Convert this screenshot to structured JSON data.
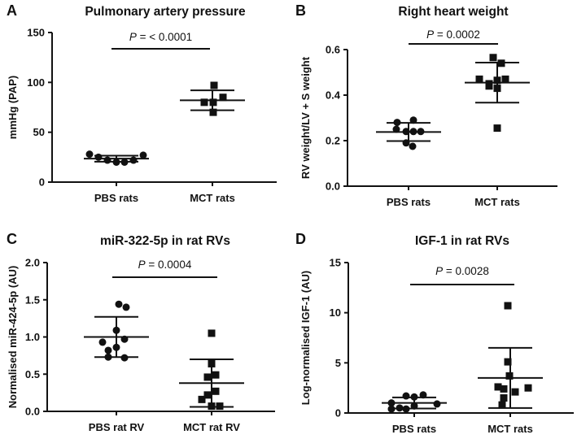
{
  "chart_data": [
    {
      "type": "scatter",
      "panel": "A",
      "title": "Pulmonary artery pressure",
      "ylabel": "mmHg (PAP)",
      "xlabel": "",
      "ylim": [
        0,
        150
      ],
      "yticks": [
        "0",
        "50",
        "100",
        "150"
      ],
      "ytick_values": [
        0,
        50,
        100,
        150
      ],
      "categories": [
        "PBS rats",
        "MCT rats"
      ],
      "p_label": "P = < 0.0001",
      "series": [
        {
          "name": "PBS rats",
          "marker": "circle",
          "values": [
            28,
            25,
            22,
            20,
            20,
            22,
            27
          ],
          "mean": 23.5,
          "sd": 3
        },
        {
          "name": "MCT rats",
          "marker": "square",
          "values": [
            97,
            85,
            80,
            80,
            70
          ],
          "mean": 82,
          "sd": 10
        }
      ]
    },
    {
      "type": "scatter",
      "panel": "B",
      "title": "Right heart weight",
      "ylabel": "RV weight/LV + S weight",
      "xlabel": "",
      "ylim": [
        0,
        0.6
      ],
      "yticks": [
        "0.0",
        "0.2",
        "0.4",
        "0.6"
      ],
      "ytick_values": [
        0,
        0.2,
        0.4,
        0.6
      ],
      "categories": [
        "PBS rats",
        "MCT rats"
      ],
      "p_label": "P = 0.0002",
      "series": [
        {
          "name": "PBS rats",
          "marker": "circle",
          "values": [
            0.29,
            0.28,
            0.25,
            0.24,
            0.24,
            0.24,
            0.19,
            0.175
          ],
          "mean": 0.238,
          "sd": 0.04
        },
        {
          "name": "MCT rats",
          "marker": "square",
          "values": [
            0.565,
            0.54,
            0.47,
            0.465,
            0.47,
            0.44,
            0.43,
            0.45,
            0.255
          ],
          "mean": 0.455,
          "sd": 0.088
        }
      ]
    },
    {
      "type": "scatter",
      "panel": "C",
      "title": "miR-322-5p in rat RVs",
      "ylabel": "Normalised miR-424-5p (AU)",
      "xlabel": "",
      "ylim": [
        0,
        2.0
      ],
      "yticks": [
        "0.0",
        "0.5",
        "1.0",
        "1.5",
        "2.0"
      ],
      "ytick_values": [
        0,
        0.5,
        1.0,
        1.5,
        2.0
      ],
      "categories": [
        "PBS rat RV",
        "MCT rat RV"
      ],
      "p_label": "P = 0.0004",
      "series": [
        {
          "name": "PBS rat RV",
          "marker": "circle",
          "values": [
            1.44,
            1.4,
            1.09,
            0.97,
            0.93,
            0.86,
            0.82,
            0.73,
            0.72
          ],
          "mean": 1.0,
          "sd": 0.27
        },
        {
          "name": "MCT rat RV",
          "marker": "square",
          "values": [
            1.05,
            0.64,
            0.49,
            0.46,
            0.27,
            0.22,
            0.16,
            0.07,
            0.07
          ],
          "mean": 0.38,
          "sd": 0.32
        }
      ]
    },
    {
      "type": "scatter",
      "panel": "D",
      "title": "IGF-1 in rat RVs",
      "ylabel": "Log-normalised IGF-1 (AU)",
      "xlabel": "",
      "ylim": [
        0,
        15
      ],
      "yticks": [
        "0",
        "5",
        "10",
        "15"
      ],
      "ytick_values": [
        0,
        5,
        10,
        15
      ],
      "categories": [
        "PBS rats",
        "MCT rats"
      ],
      "p_label": "P = 0.0028",
      "series": [
        {
          "name": "PBS rats",
          "marker": "circle",
          "values": [
            1.7,
            1.6,
            1.8,
            1.0,
            0.5,
            0.4,
            0.4,
            0.7,
            0.9
          ],
          "mean": 1.0,
          "sd": 0.55
        },
        {
          "name": "MCT rats",
          "marker": "square",
          "values": [
            10.7,
            5.1,
            3.7,
            2.6,
            2.4,
            1.5,
            2.1,
            2.5,
            0.8
          ],
          "mean": 3.5,
          "sd": 3.0
        }
      ]
    }
  ]
}
